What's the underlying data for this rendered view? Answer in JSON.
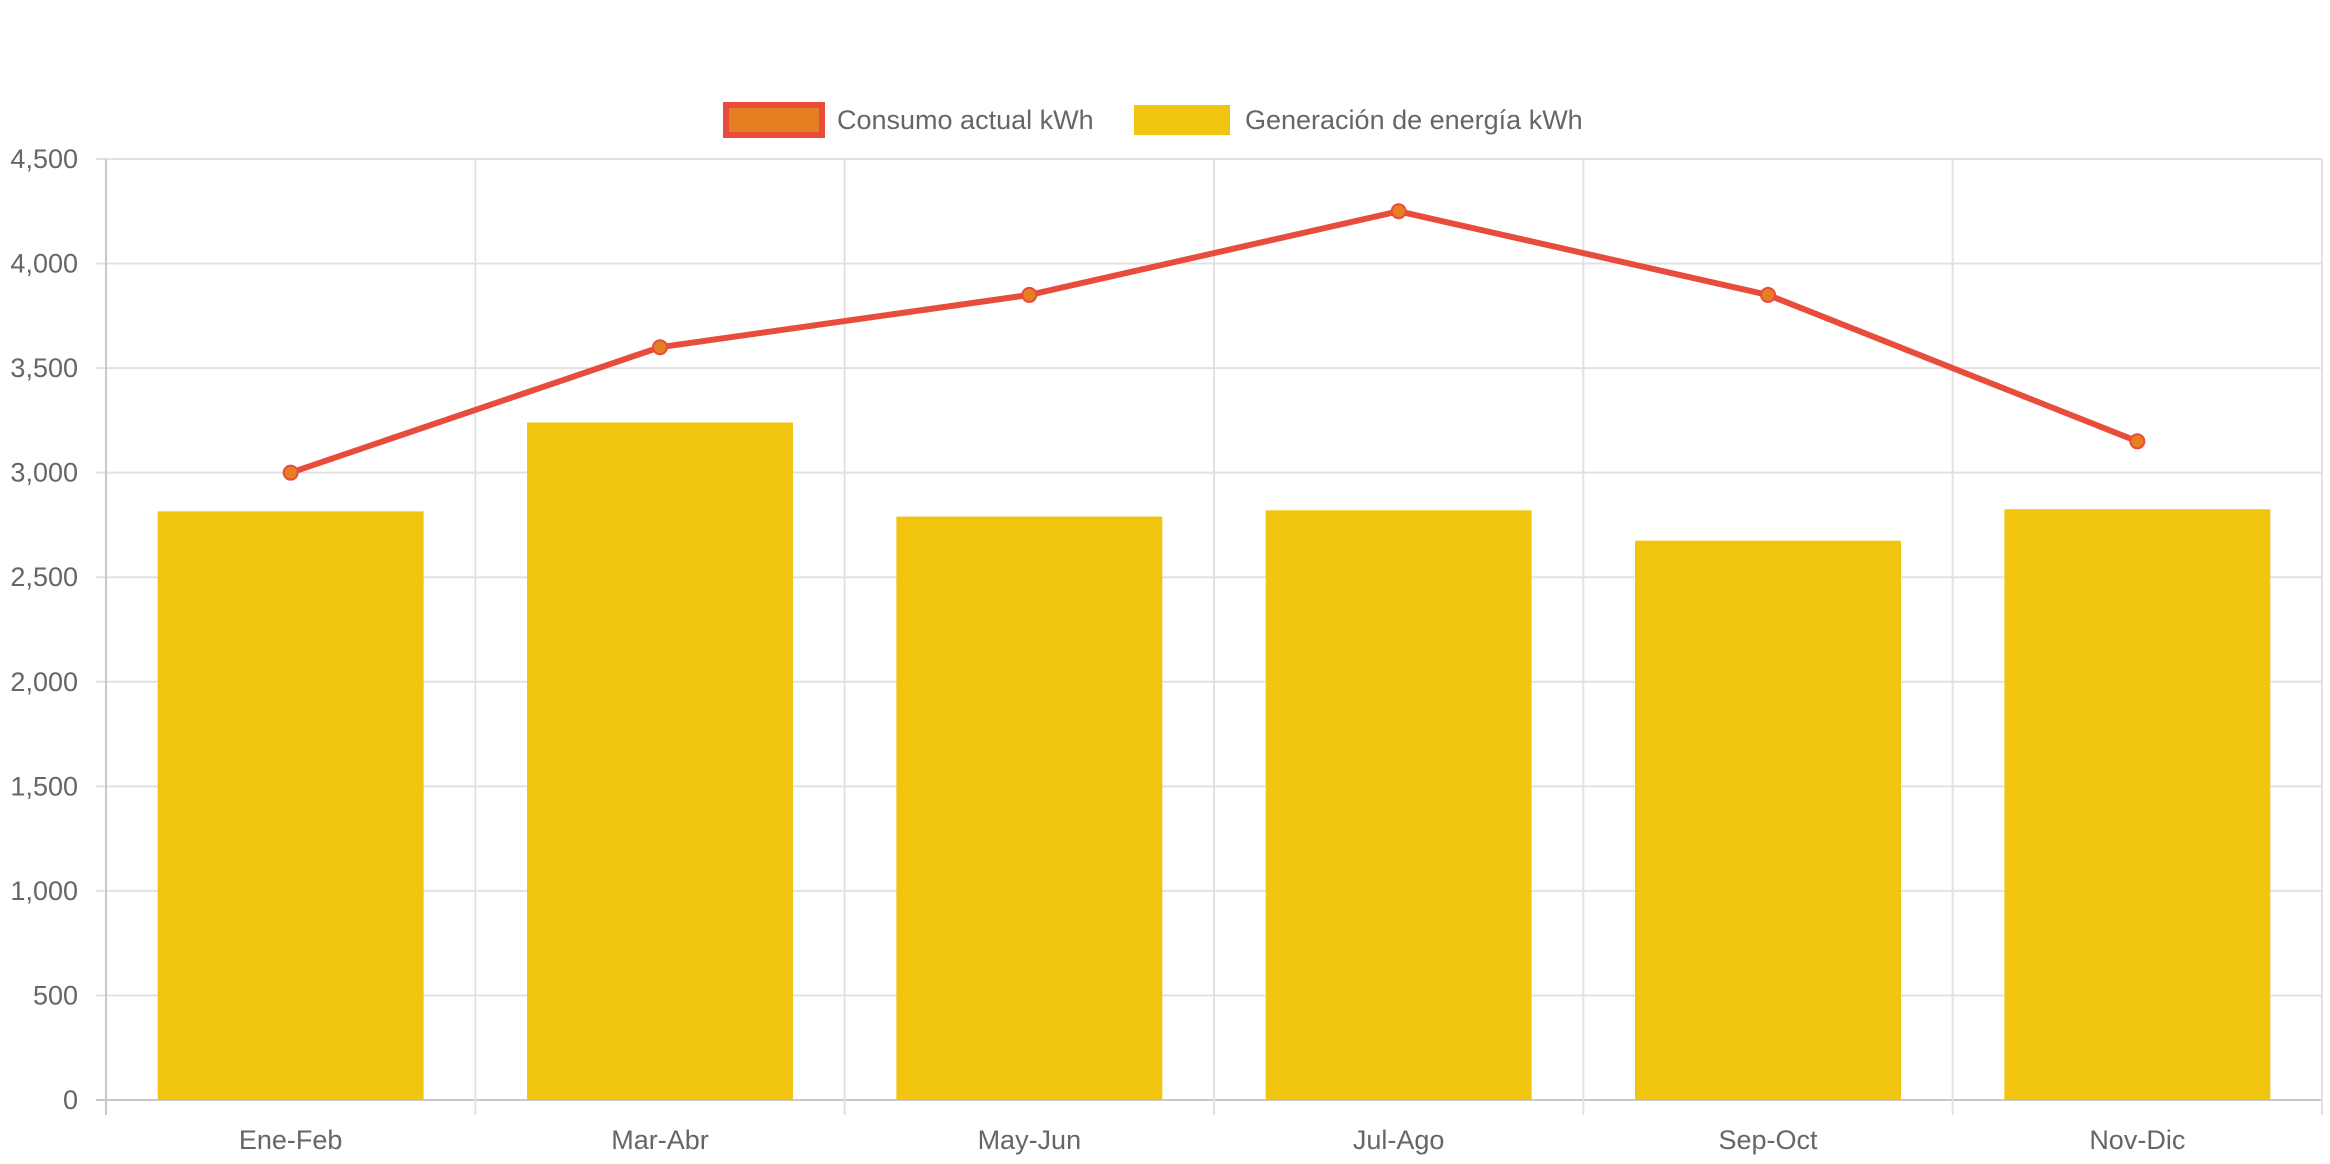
{
  "chart_data": {
    "type": "bar",
    "categories": [
      "Ene-Feb",
      "Mar-Abr",
      "May-Jun",
      "Jul-Ago",
      "Sep-Oct",
      "Nov-Dic"
    ],
    "series": [
      {
        "name": "Consumo actual kWh",
        "type": "line",
        "values": [
          3000,
          3600,
          3850,
          4250,
          3850,
          3150
        ],
        "color": "#e74c3c",
        "point_color": "#e67e22"
      },
      {
        "name": "Generación de energía kWh",
        "type": "bar",
        "values": [
          2815,
          3240,
          2790,
          2820,
          2675,
          2825
        ],
        "color": "#f1c40f"
      }
    ],
    "ylim": [
      0,
      4500
    ],
    "yticks": [
      0,
      500,
      1000,
      1500,
      2000,
      2500,
      3000,
      3500,
      4000,
      4500
    ],
    "ytick_labels": [
      "0",
      "500",
      "1,000",
      "1,500",
      "2,000",
      "2,500",
      "3,000",
      "3,500",
      "4,000",
      "4,500"
    ],
    "grid": true,
    "legend_position": "top-center"
  }
}
